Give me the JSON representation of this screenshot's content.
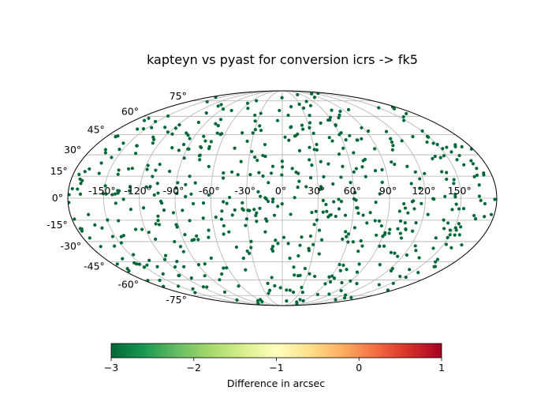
{
  "chart_data": {
    "type": "scatter",
    "projection": "mollweide",
    "title": "kapteyn vs pyast for conversion icrs -> fk5",
    "xlim": [
      -180,
      180
    ],
    "ylim": [
      -90,
      90
    ],
    "grid": true,
    "lon_ticks": [
      -150,
      -120,
      -90,
      -60,
      -30,
      0,
      30,
      60,
      90,
      120,
      150
    ],
    "lon_tick_labels": [
      "-150°",
      "-120°",
      "-90°",
      "-60°",
      "-30°",
      "0°",
      "30°",
      "60°",
      "90°",
      "120°",
      "150°"
    ],
    "lat_ticks": [
      -75,
      -60,
      -45,
      -30,
      -15,
      0,
      15,
      30,
      45,
      60,
      75
    ],
    "lat_tick_labels": [
      "-75°",
      "-60°",
      "-45°",
      "-30°",
      "-15°",
      "0°",
      "15°",
      "30°",
      "45°",
      "60°",
      "75°"
    ],
    "marker_color": "#006837",
    "n_points": 600,
    "colorbar": {
      "label": "Difference in arcsec",
      "colormap": "RdYlGn_r",
      "vmin": -3,
      "vmax": 1,
      "ticks": [
        -3,
        -2,
        -1,
        0,
        1
      ],
      "tick_labels": [
        "−3",
        "−2",
        "−1",
        "0",
        "1"
      ],
      "colors": [
        "#006837",
        "#1a9850",
        "#66bd63",
        "#a6d96a",
        "#d9ef8b",
        "#ffffbf",
        "#fee08b",
        "#fdae61",
        "#f46d43",
        "#d73027",
        "#a50026"
      ]
    }
  }
}
